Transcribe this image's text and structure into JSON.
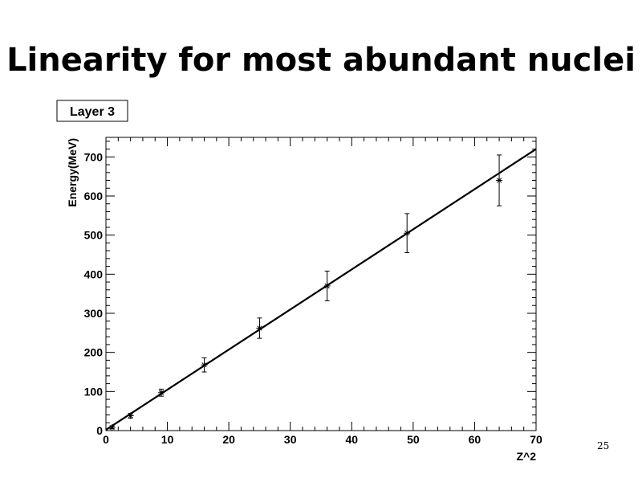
{
  "slide": {
    "title": "Linearity for most abundant nuclei",
    "number": "25"
  },
  "chart_data": {
    "type": "scatter",
    "title": "Layer 3",
    "xlabel": "Z^2",
    "ylabel": "Energy(MeV)",
    "xlim": [
      0,
      70
    ],
    "ylim": [
      0,
      750
    ],
    "xticks": [
      0,
      10,
      20,
      30,
      40,
      50,
      60,
      70
    ],
    "yticks": [
      0,
      100,
      200,
      300,
      400,
      500,
      600,
      700
    ],
    "grid": false,
    "series": [
      {
        "marker": "asterisk",
        "x": [
          1,
          4,
          9,
          16,
          25,
          36,
          49,
          64
        ],
        "y": [
          8,
          38,
          97,
          168,
          262,
          370,
          505,
          640
        ],
        "yerr": [
          3,
          6,
          9,
          18,
          26,
          38,
          50,
          65
        ]
      }
    ],
    "fit_line": {
      "x": [
        0,
        70
      ],
      "y": [
        2,
        720
      ]
    }
  }
}
